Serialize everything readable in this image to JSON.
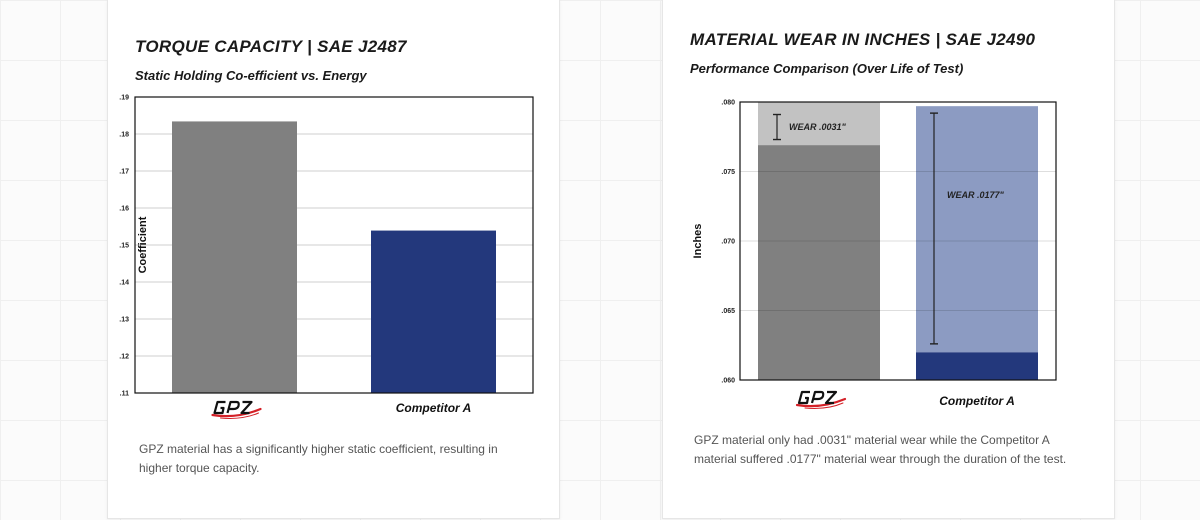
{
  "colors": {
    "gpz_bar": "#808080",
    "competitor_bar": "#23387c",
    "gpz_wear": "#c2c2c2",
    "competitor_wear": "#8c9bc2",
    "gridline": "#cfcfcf",
    "logo_red": "#d42027"
  },
  "chart_data": [
    {
      "type": "bar",
      "title": "TORQUE CAPACITY | SAE J2487",
      "subtitle": "Static Holding Co-efficient vs. Energy",
      "xlabel": "",
      "ylabel": "Coefficient",
      "ylim": [
        0.11,
        0.19
      ],
      "yticks": [
        0.11,
        0.12,
        0.13,
        0.14,
        0.15,
        0.16,
        0.17,
        0.18,
        0.19
      ],
      "ytick_labels": [
        ".11",
        ".12",
        ".13",
        ".14",
        ".15",
        ".16",
        ".17",
        ".18",
        ".19"
      ],
      "grid": true,
      "categories": [
        "GPZ",
        "Competitor A"
      ],
      "category_labels": [
        "",
        "Competitor A"
      ],
      "logo_categories": [
        "GPZ"
      ],
      "values": [
        0.1834,
        0.1539
      ],
      "caption": "GPZ material has a significantly higher static coefficient, resulting in higher torque capacity."
    },
    {
      "type": "bar",
      "stacked": true,
      "title": "MATERIAL WEAR IN INCHES | SAE J2490",
      "subtitle": "Performance Comparison (Over Life of Test)",
      "xlabel": "",
      "ylabel": "Inches",
      "ylim": [
        0.06,
        0.08
      ],
      "yticks": [
        0.06,
        0.065,
        0.07,
        0.075,
        0.08
      ],
      "ytick_labels": [
        ".060",
        ".065",
        ".070",
        ".075",
        ".080"
      ],
      "grid": true,
      "categories": [
        "GPZ",
        "Competitor A"
      ],
      "category_labels": [
        "",
        "Competitor A"
      ],
      "logo_categories": [
        "GPZ"
      ],
      "remaining": [
        0.0769,
        0.062
      ],
      "wear": [
        0.0031,
        0.0177
      ],
      "wear_labels": [
        "WEAR .0031\"",
        "WEAR .0177\""
      ],
      "caption": "GPZ material only had .0031\" material wear while the Competitor A material suffered .0177\" material wear through the duration of the test."
    }
  ]
}
